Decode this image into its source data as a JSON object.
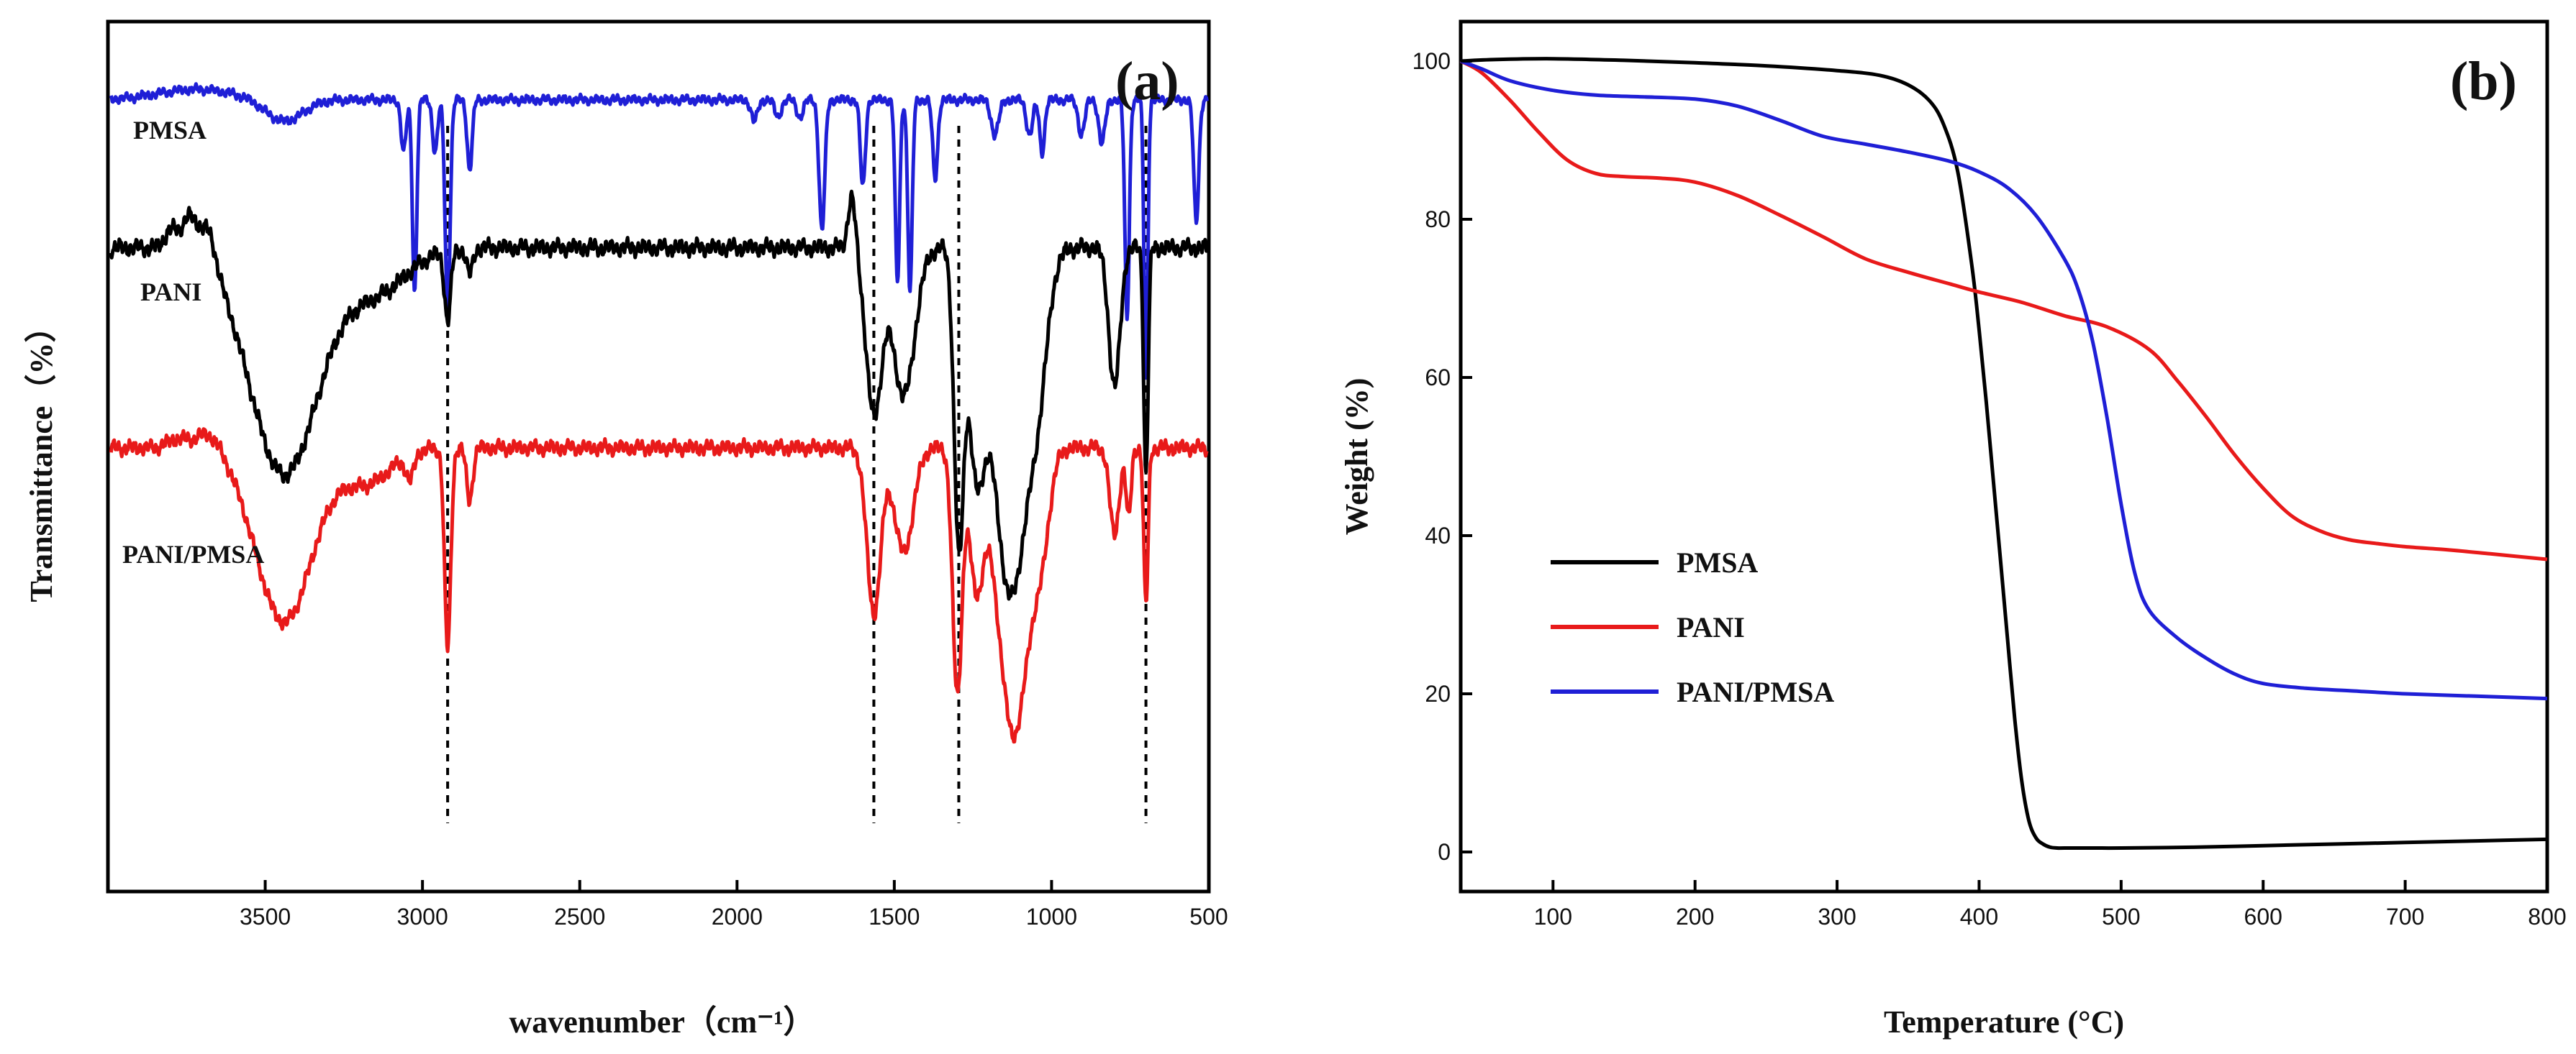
{
  "chart_data": [
    {
      "type": "line",
      "panel_label": "(a)",
      "xlabel": "wavenumber（cm⁻¹）",
      "ylabel": "Transmittance（%）",
      "xlim": [
        4000,
        500
      ],
      "x_reversed": true,
      "xticks": [
        3500,
        3000,
        2500,
        2000,
        1500,
        1000,
        500
      ],
      "yticks_shown": false,
      "reference_lines_x": [
        2920,
        1565,
        1295,
        700
      ],
      "series": [
        {
          "name": "PMSA",
          "color": "#1f1fd6",
          "baseline": 91,
          "noise": 0.5,
          "dips": [
            [
              3440,
              2.5,
              60
            ],
            [
              3060,
              6,
              8
            ],
            [
              3025,
              22,
              7
            ],
            [
              2960,
              6,
              8
            ],
            [
              2920,
              24,
              8
            ],
            [
              2850,
              8,
              8
            ],
            [
              1945,
              2.5,
              10
            ],
            [
              1870,
              2,
              10
            ],
            [
              1800,
              2,
              10
            ],
            [
              1730,
              15,
              9
            ],
            [
              1600,
              10,
              8
            ],
            [
              1490,
              21,
              7
            ],
            [
              1450,
              22,
              7
            ],
            [
              1370,
              9,
              8
            ],
            [
              1180,
              4,
              12
            ],
            [
              1070,
              4,
              10
            ],
            [
              1030,
              6,
              8
            ],
            [
              905,
              4,
              10
            ],
            [
              840,
              5,
              10
            ],
            [
              760,
              25,
              7
            ],
            [
              700,
              32,
              6
            ],
            [
              540,
              14,
              8
            ]
          ],
          "bumps": [
            [
              3720,
              1.2,
              120
            ]
          ]
        },
        {
          "name": "PANI",
          "color": "#000000",
          "baseline": 74,
          "noise": 0.9,
          "dips": [
            [
              3440,
              26,
              110
            ],
            [
              3150,
              5,
              100
            ],
            [
              2920,
              8,
              10
            ],
            [
              2850,
              3,
              10
            ],
            [
              1565,
              19,
              25
            ],
            [
              1470,
              17,
              35
            ],
            [
              1295,
              33,
              15
            ],
            [
              1240,
              22,
              25
            ],
            [
              1130,
              40,
              55
            ],
            [
              1040,
              10,
              30
            ],
            [
              800,
              16,
              18
            ],
            [
              700,
              26,
              7
            ]
          ],
          "bumps": [
            [
              3740,
              4,
              25
            ],
            [
              3680,
              4,
              25
            ],
            [
              3800,
              2,
              20
            ],
            [
              1635,
              6,
              12
            ]
          ]
        },
        {
          "name": "PANI/PMSA",
          "color": "#e81a1a",
          "baseline": 51,
          "noise": 0.8,
          "dips": [
            [
              3440,
              20,
              90
            ],
            [
              3180,
              4,
              80
            ],
            [
              3040,
              3,
              12
            ],
            [
              2920,
              23,
              10
            ],
            [
              2850,
              6,
              10
            ],
            [
              1565,
              19,
              22
            ],
            [
              1470,
              12,
              30
            ],
            [
              1300,
              28,
              15
            ],
            [
              1240,
              15,
              22
            ],
            [
              1120,
              33,
              50
            ],
            [
              1030,
              8,
              25
            ],
            [
              800,
              10,
              15
            ],
            [
              755,
              8,
              8
            ],
            [
              700,
              18,
              7
            ]
          ],
          "bumps": [
            [
              3680,
              2,
              40
            ],
            [
              3780,
              1,
              30
            ]
          ]
        }
      ]
    },
    {
      "type": "line",
      "panel_label": "(b)",
      "xlabel": "Temperature (°C)",
      "ylabel": "Weight (%)",
      "xlim": [
        35,
        800
      ],
      "ylim": [
        -5,
        105
      ],
      "xticks": [
        100,
        200,
        300,
        400,
        500,
        600,
        700,
        800
      ],
      "yticks": [
        0,
        20,
        40,
        60,
        80,
        100
      ],
      "legend_position": "lower-left",
      "series": [
        {
          "name": "PMSA",
          "color": "#000000",
          "x": [
            35,
            60,
            100,
            150,
            200,
            250,
            300,
            330,
            350,
            365,
            375,
            385,
            395,
            400,
            405,
            410,
            415,
            420,
            425,
            430,
            435,
            440,
            445,
            450,
            455,
            460,
            480,
            500,
            550,
            600,
            650,
            700,
            750,
            800
          ],
          "y": [
            100,
            100.2,
            100.3,
            100.1,
            99.8,
            99.4,
            98.8,
            98.2,
            97,
            95,
            92,
            86,
            74,
            66,
            57,
            47,
            37,
            27,
            17,
            9,
            4,
            1.8,
            1,
            0.6,
            0.5,
            0.5,
            0.5,
            0.5,
            0.6,
            0.8,
            1,
            1.2,
            1.4,
            1.6
          ]
        },
        {
          "name": "PANI",
          "color": "#e81a1a",
          "x": [
            35,
            50,
            70,
            90,
            110,
            130,
            150,
            175,
            200,
            230,
            260,
            290,
            320,
            350,
            380,
            400,
            430,
            460,
            490,
            520,
            540,
            560,
            580,
            600,
            620,
            640,
            660,
            680,
            700,
            730,
            760,
            800
          ],
          "y": [
            100,
            98.5,
            95,
            91,
            87.5,
            85.8,
            85.4,
            85.2,
            84.7,
            83,
            80.5,
            77.8,
            75,
            73.3,
            71.8,
            70.8,
            69.5,
            67.8,
            66.4,
            63.5,
            59.5,
            55,
            50.2,
            46,
            42.5,
            40.6,
            39.5,
            39,
            38.6,
            38.2,
            37.7,
            37
          ]
        },
        {
          "name": "PANI/PMSA",
          "color": "#1f1fd6",
          "x": [
            35,
            50,
            70,
            100,
            130,
            160,
            200,
            230,
            260,
            290,
            320,
            350,
            380,
            400,
            420,
            440,
            460,
            470,
            480,
            490,
            500,
            510,
            520,
            540,
            560,
            580,
            600,
            630,
            660,
            700,
            750,
            800
          ],
          "y": [
            100,
            99,
            97.5,
            96.3,
            95.7,
            95.5,
            95.2,
            94.3,
            92.5,
            90.5,
            89.5,
            88.5,
            87.3,
            86,
            84,
            80.5,
            75,
            71,
            64.5,
            55,
            44,
            35,
            30.5,
            27,
            24.5,
            22.5,
            21.3,
            20.7,
            20.4,
            20,
            19.7,
            19.4
          ]
        }
      ]
    }
  ]
}
